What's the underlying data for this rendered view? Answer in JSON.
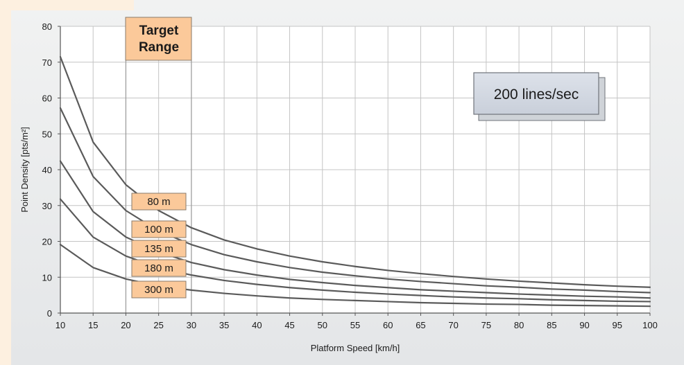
{
  "chart_data": {
    "type": "line",
    "xlabel": "Platform Speed [km/h]",
    "ylabel": "Point Density [pts/m²]",
    "xlim": [
      10,
      100
    ],
    "ylim": [
      0,
      80
    ],
    "x_ticks": [
      "10",
      "15",
      "20",
      "25",
      "30",
      "35",
      "40",
      "45",
      "50",
      "55",
      "60",
      "65",
      "70",
      "75",
      "80",
      "85",
      "90",
      "95",
      "100"
    ],
    "y_ticks": [
      "0",
      "10",
      "20",
      "30",
      "40",
      "50",
      "60",
      "70",
      "80"
    ],
    "grid": true,
    "annotations": {
      "target_range": "Target\nRange",
      "line_rate": "200 lines/sec"
    },
    "target_range_x": [
      20,
      30
    ],
    "x": [
      10,
      15,
      20,
      25,
      30,
      35,
      40,
      45,
      50,
      55,
      60,
      65,
      70,
      75,
      80,
      85,
      90,
      95,
      100
    ],
    "series": [
      {
        "name": "80 m",
        "values": [
          71.5,
          47.7,
          35.8,
          28.6,
          23.8,
          20.4,
          17.9,
          15.9,
          14.3,
          13.0,
          11.9,
          11.0,
          10.2,
          9.5,
          8.9,
          8.4,
          7.9,
          7.5,
          7.2
        ]
      },
      {
        "name": "100 m",
        "values": [
          57.2,
          38.1,
          28.6,
          22.9,
          19.1,
          16.3,
          14.3,
          12.7,
          11.4,
          10.4,
          9.5,
          8.8,
          8.2,
          7.6,
          7.2,
          6.7,
          6.4,
          6.0,
          5.7
        ]
      },
      {
        "name": "135 m",
        "values": [
          42.4,
          28.3,
          21.2,
          17.0,
          14.1,
          12.1,
          10.6,
          9.4,
          8.5,
          7.7,
          7.1,
          6.5,
          6.1,
          5.7,
          5.3,
          5.0,
          4.7,
          4.5,
          4.2
        ]
      },
      {
        "name": "180 m",
        "values": [
          31.8,
          21.2,
          15.9,
          12.7,
          10.6,
          9.1,
          8.0,
          7.1,
          6.4,
          5.8,
          5.3,
          4.9,
          4.5,
          4.2,
          4.0,
          3.7,
          3.5,
          3.3,
          3.2
        ]
      },
      {
        "name": "300 m",
        "values": [
          19.1,
          12.7,
          9.5,
          7.6,
          6.4,
          5.5,
          4.8,
          4.2,
          3.8,
          3.5,
          3.2,
          2.9,
          2.7,
          2.5,
          2.4,
          2.2,
          2.1,
          2.0,
          1.9
        ]
      }
    ],
    "colors": {
      "curve": "#5a5a5a",
      "label_fill": "#fbc99a",
      "label_stroke": "#8a7a6a",
      "rate_box_fill": "#d2d8e2",
      "background": "#e9ebec",
      "left_strip": "#fdf0e0"
    }
  }
}
